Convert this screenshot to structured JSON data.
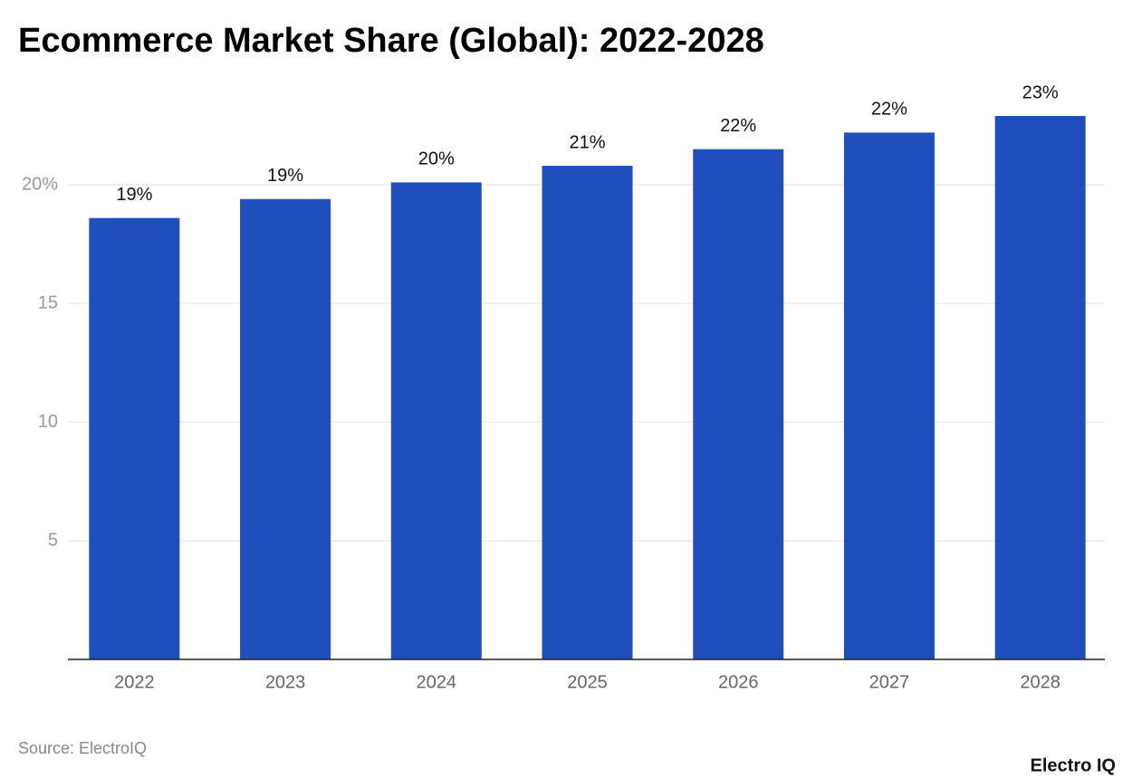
{
  "chart_data": {
    "type": "bar",
    "title": "Ecommerce Market Share (Global): 2022-2028",
    "categories": [
      "2022",
      "2023",
      "2024",
      "2025",
      "2026",
      "2027",
      "2028"
    ],
    "values": [
      18.6,
      19.4,
      20.1,
      20.8,
      21.5,
      22.2,
      22.9
    ],
    "value_labels": [
      "19%",
      "19%",
      "20%",
      "21%",
      "22%",
      "22%",
      "23%"
    ],
    "color": "#1f4fbd",
    "ylim": [
      0,
      24
    ],
    "yticks": [
      5,
      10,
      15,
      {
        "value": 20,
        "label": "20%"
      }
    ],
    "grid": true,
    "source": "Source: ElectroIQ",
    "brand": "Electro IQ"
  }
}
